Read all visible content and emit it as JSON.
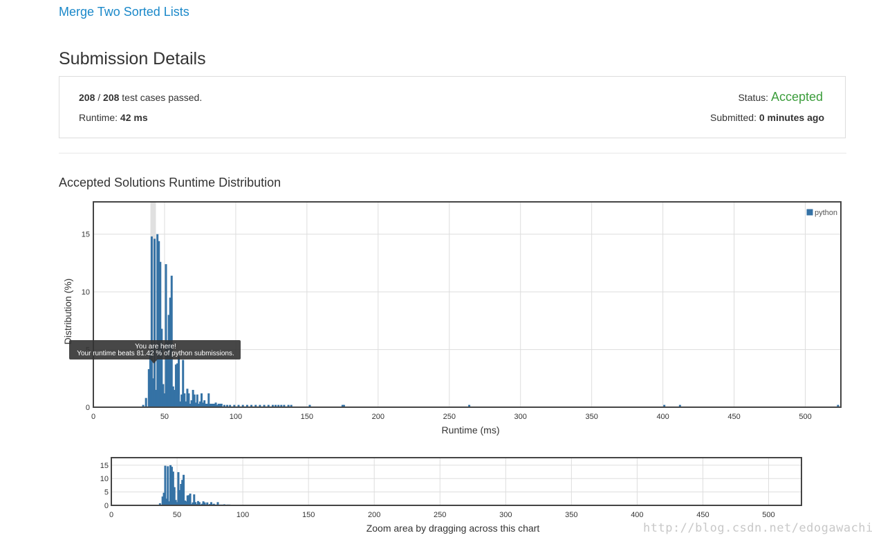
{
  "problem": {
    "title": "Merge Two Sorted Lists"
  },
  "page": {
    "title": "Submission Details"
  },
  "details": {
    "tests_passed": "208",
    "separator": " / ",
    "tests_total": "208",
    "tests_suffix": " test cases passed.",
    "runtime_label": "Runtime: ",
    "runtime_value": "42 ms",
    "status_label": "Status: ",
    "status_value": "Accepted",
    "submitted_label": "Submitted: ",
    "submitted_value": "0 minutes ago"
  },
  "section": {
    "title": "Accepted Solutions Runtime Distribution"
  },
  "tooltip": {
    "line1": "You are here!",
    "line2": "Your runtime beats 81.42 % of python submissions."
  },
  "zoom": {
    "caption": "Zoom area by dragging across this chart"
  },
  "watermark": "http://blog.csdn.net/edogawachia",
  "colors": {
    "bar": "#3572a5",
    "accepted": "#3c9d3c",
    "link": "#1a88c9"
  },
  "chart_data": {
    "type": "bar",
    "xlabel": "Runtime (ms)",
    "ylabel": "Distribution (%)",
    "xlim": [
      0,
      525
    ],
    "ylim": [
      0,
      17.8
    ],
    "xticks": [
      0,
      50,
      100,
      150,
      200,
      250,
      300,
      350,
      400,
      450,
      500
    ],
    "yticks": [
      0,
      5,
      10,
      15
    ],
    "grid": true,
    "legend_position": "top-right",
    "highlight_x": 42,
    "series": [
      {
        "name": "python",
        "color": "#3572a5",
        "x": [
          35,
          37,
          39,
          40,
          41,
          42,
          43,
          44,
          45,
          46,
          47,
          48,
          49,
          50,
          51,
          52,
          53,
          54,
          55,
          56,
          57,
          58,
          59,
          60,
          61,
          62,
          63,
          64,
          65,
          66,
          67,
          68,
          69,
          70,
          71,
          72,
          73,
          74,
          75,
          76,
          77,
          78,
          79,
          80,
          81,
          82,
          83,
          84,
          85,
          86,
          87,
          88,
          89,
          90,
          92,
          94,
          96,
          99,
          102,
          105,
          108,
          111,
          114,
          117,
          120,
          123,
          126,
          128,
          130,
          132,
          134,
          137,
          139,
          152,
          175,
          176,
          264,
          401,
          412,
          523
        ],
        "values": [
          0.2,
          0.8,
          3.3,
          4.7,
          14.8,
          2.5,
          14.6,
          1.5,
          15.0,
          14.4,
          12.6,
          6.8,
          2.0,
          1.2,
          12.4,
          5.7,
          8.0,
          9.5,
          11.4,
          1.8,
          1.5,
          3.7,
          3.8,
          4.4,
          0.5,
          1.1,
          4.1,
          1.2,
          0.5,
          1.6,
          1.2,
          0.3,
          0.6,
          1.5,
          1.1,
          0.4,
          1.1,
          0.3,
          0.5,
          1.2,
          0.4,
          0.6,
          0.3,
          0.3,
          1.2,
          0.3,
          0.3,
          0.3,
          0.3,
          0.4,
          0.2,
          0.3,
          0.3,
          0.3,
          0.2,
          0.2,
          0.2,
          0.2,
          0.2,
          0.2,
          0.2,
          0.2,
          0.2,
          0.2,
          0.2,
          0.2,
          0.2,
          0.2,
          0.2,
          0.2,
          0.2,
          0.2,
          0.2,
          0.2,
          0.2,
          0.2,
          0.2,
          0.2,
          0.2,
          0.2
        ]
      }
    ]
  }
}
